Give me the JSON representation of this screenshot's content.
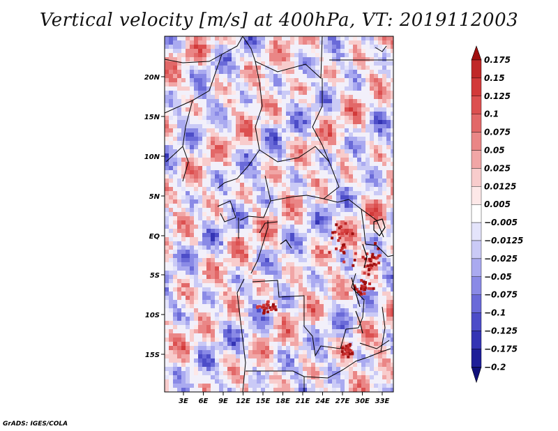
{
  "title": "Vertical velocity [m/s] at 400hPa, VT: 2019112003",
  "credit": "GrADS: IGES/COLA",
  "map": {
    "lat_labels": [
      "20N",
      "15N",
      "10N",
      "5N",
      "EQ",
      "5S",
      "10S",
      "15S"
    ],
    "lon_labels": [
      "3E",
      "6E",
      "9E",
      "12E",
      "15E",
      "18E",
      "21E",
      "24E",
      "27E",
      "30E",
      "33E"
    ]
  },
  "colorbar": {
    "levels": [
      "0.175",
      "0.15",
      "0.125",
      "0.1",
      "0.075",
      "0.05",
      "0.025",
      "0.0125",
      "0.005",
      "−0.005",
      "−0.0125",
      "−0.025",
      "−0.05",
      "−0.075",
      "−0.1",
      "−0.125",
      "−0.175",
      "−0.2"
    ],
    "colors": [
      "#a01010",
      "#c02828",
      "#d23a3a",
      "#dc5050",
      "#e26868",
      "#ea8686",
      "#f1a6a6",
      "#f8cccc",
      "#fde8e8",
      "#ffffff",
      "#e4e4fb",
      "#cacaf6",
      "#aaaaf0",
      "#8a8ae6",
      "#6a6ad8",
      "#4d4dc8",
      "#3434b4",
      "#1e1e98",
      "#10107a"
    ]
  }
}
